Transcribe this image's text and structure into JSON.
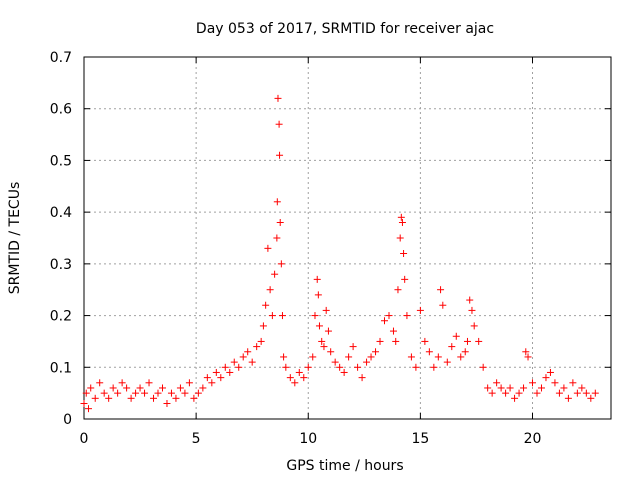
{
  "chart_data": {
    "type": "scatter",
    "title": "Day 053 of 2017, SRMTID for receiver ajac",
    "xlabel": "GPS time / hours",
    "ylabel": "SRMTID / TECUs",
    "xlim": [
      0,
      23.5
    ],
    "ylim": [
      0,
      0.7
    ],
    "xticks": [
      0,
      5,
      10,
      15,
      20
    ],
    "xtick_labels": [
      "0",
      "5",
      "10",
      "15",
      "20"
    ],
    "yticks": [
      0,
      0.1,
      0.2,
      0.3,
      0.4,
      0.5,
      0.6,
      0.7
    ],
    "ytick_labels": [
      "0",
      "0.1",
      "0.2",
      "0.3",
      "0.4",
      "0.5",
      "0.6",
      "0.7"
    ],
    "grid": true,
    "marker": "+",
    "series": [
      {
        "name": "SRMTID",
        "color": "#ff0000",
        "x": [
          0.0,
          0.1,
          0.2,
          0.3,
          0.5,
          0.7,
          0.9,
          1.1,
          1.3,
          1.5,
          1.7,
          1.9,
          2.1,
          2.3,
          2.5,
          2.7,
          2.9,
          3.1,
          3.3,
          3.5,
          3.7,
          3.9,
          4.1,
          4.3,
          4.5,
          4.7,
          4.9,
          5.1,
          5.3,
          5.5,
          5.7,
          5.9,
          6.1,
          6.3,
          6.5,
          6.7,
          6.9,
          7.1,
          7.3,
          7.5,
          7.7,
          7.9,
          8.0,
          8.1,
          8.2,
          8.3,
          8.4,
          8.5,
          8.6,
          8.62,
          8.65,
          8.7,
          8.72,
          8.75,
          8.8,
          8.85,
          8.9,
          9.0,
          9.2,
          9.4,
          9.6,
          9.8,
          10.0,
          10.2,
          10.3,
          10.4,
          10.45,
          10.5,
          10.6,
          10.7,
          10.8,
          10.9,
          11.0,
          11.2,
          11.4,
          11.6,
          11.8,
          12.0,
          12.2,
          12.4,
          12.6,
          12.8,
          13.0,
          13.2,
          13.4,
          13.6,
          13.8,
          13.9,
          14.0,
          14.1,
          14.15,
          14.2,
          14.25,
          14.3,
          14.4,
          14.6,
          14.8,
          15.0,
          15.2,
          15.4,
          15.6,
          15.8,
          15.9,
          16.0,
          16.2,
          16.4,
          16.6,
          16.8,
          17.0,
          17.1,
          17.2,
          17.3,
          17.4,
          17.6,
          17.8,
          18.0,
          18.2,
          18.4,
          18.6,
          18.8,
          19.0,
          19.2,
          19.4,
          19.6,
          19.7,
          19.8,
          20.0,
          20.2,
          20.4,
          20.6,
          20.8,
          21.0,
          21.2,
          21.4,
          21.6,
          21.8,
          22.0,
          22.2,
          22.4,
          22.6,
          22.8
        ],
        "y": [
          0.03,
          0.05,
          0.02,
          0.06,
          0.04,
          0.07,
          0.05,
          0.04,
          0.06,
          0.05,
          0.07,
          0.06,
          0.04,
          0.05,
          0.06,
          0.05,
          0.07,
          0.04,
          0.05,
          0.06,
          0.03,
          0.05,
          0.04,
          0.06,
          0.05,
          0.07,
          0.04,
          0.05,
          0.06,
          0.08,
          0.07,
          0.09,
          0.08,
          0.1,
          0.09,
          0.11,
          0.1,
          0.12,
          0.13,
          0.11,
          0.14,
          0.15,
          0.18,
          0.22,
          0.33,
          0.25,
          0.2,
          0.28,
          0.35,
          0.42,
          0.62,
          0.57,
          0.51,
          0.38,
          0.3,
          0.2,
          0.12,
          0.1,
          0.08,
          0.07,
          0.09,
          0.08,
          0.1,
          0.12,
          0.2,
          0.27,
          0.24,
          0.18,
          0.15,
          0.14,
          0.21,
          0.17,
          0.13,
          0.11,
          0.1,
          0.09,
          0.12,
          0.14,
          0.1,
          0.08,
          0.11,
          0.12,
          0.13,
          0.15,
          0.19,
          0.2,
          0.17,
          0.15,
          0.25,
          0.35,
          0.39,
          0.38,
          0.32,
          0.27,
          0.2,
          0.12,
          0.1,
          0.21,
          0.15,
          0.13,
          0.1,
          0.12,
          0.25,
          0.22,
          0.11,
          0.14,
          0.16,
          0.12,
          0.13,
          0.15,
          0.23,
          0.21,
          0.18,
          0.15,
          0.1,
          0.06,
          0.05,
          0.07,
          0.06,
          0.05,
          0.06,
          0.04,
          0.05,
          0.06,
          0.13,
          0.12,
          0.07,
          0.05,
          0.06,
          0.08,
          0.09,
          0.07,
          0.05,
          0.06,
          0.04,
          0.07,
          0.05,
          0.06,
          0.05,
          0.04,
          0.05
        ]
      }
    ]
  }
}
